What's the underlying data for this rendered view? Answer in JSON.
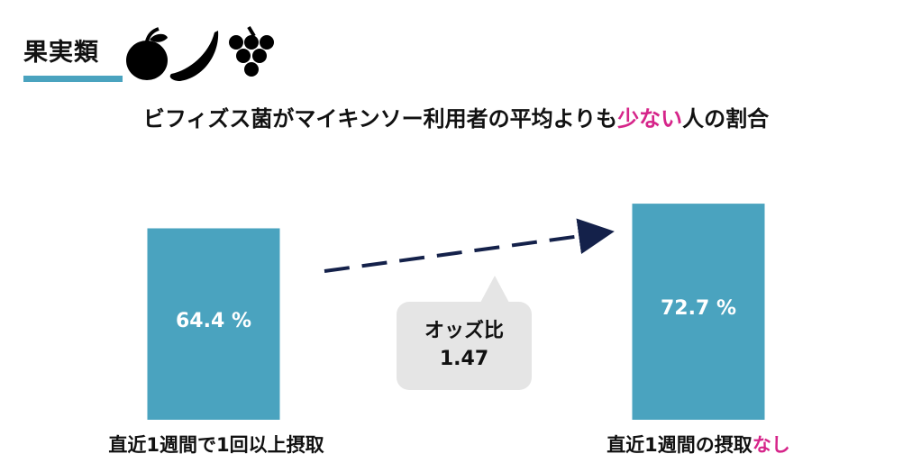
{
  "header": {
    "section_label": "果実類",
    "icons": [
      "apple-icon",
      "banana-icon",
      "grapes-icon"
    ],
    "underline_color": "#4aa3bf"
  },
  "title": {
    "prefix": "ビフィズス菌がマイキンソー利用者の平均よりも",
    "highlight": "少ない",
    "suffix": "人の割合",
    "highlight_color": "#d6258a"
  },
  "callout": {
    "label": "オッズ比",
    "value": "1.47"
  },
  "chart_data": {
    "type": "bar",
    "categories": [
      "直近1週間で1回以上摂取",
      "直近1週間の摂取なし"
    ],
    "values": [
      64.4,
      72.7
    ],
    "value_labels": [
      "64.4 %",
      "72.7 %"
    ],
    "category_label_2_prefix": "直近1週間の摂取",
    "category_label_2_highlight": "なし",
    "unit": "%",
    "bar_color": "#4aa3bf",
    "arrow_color": "#14214a",
    "grid": false
  }
}
